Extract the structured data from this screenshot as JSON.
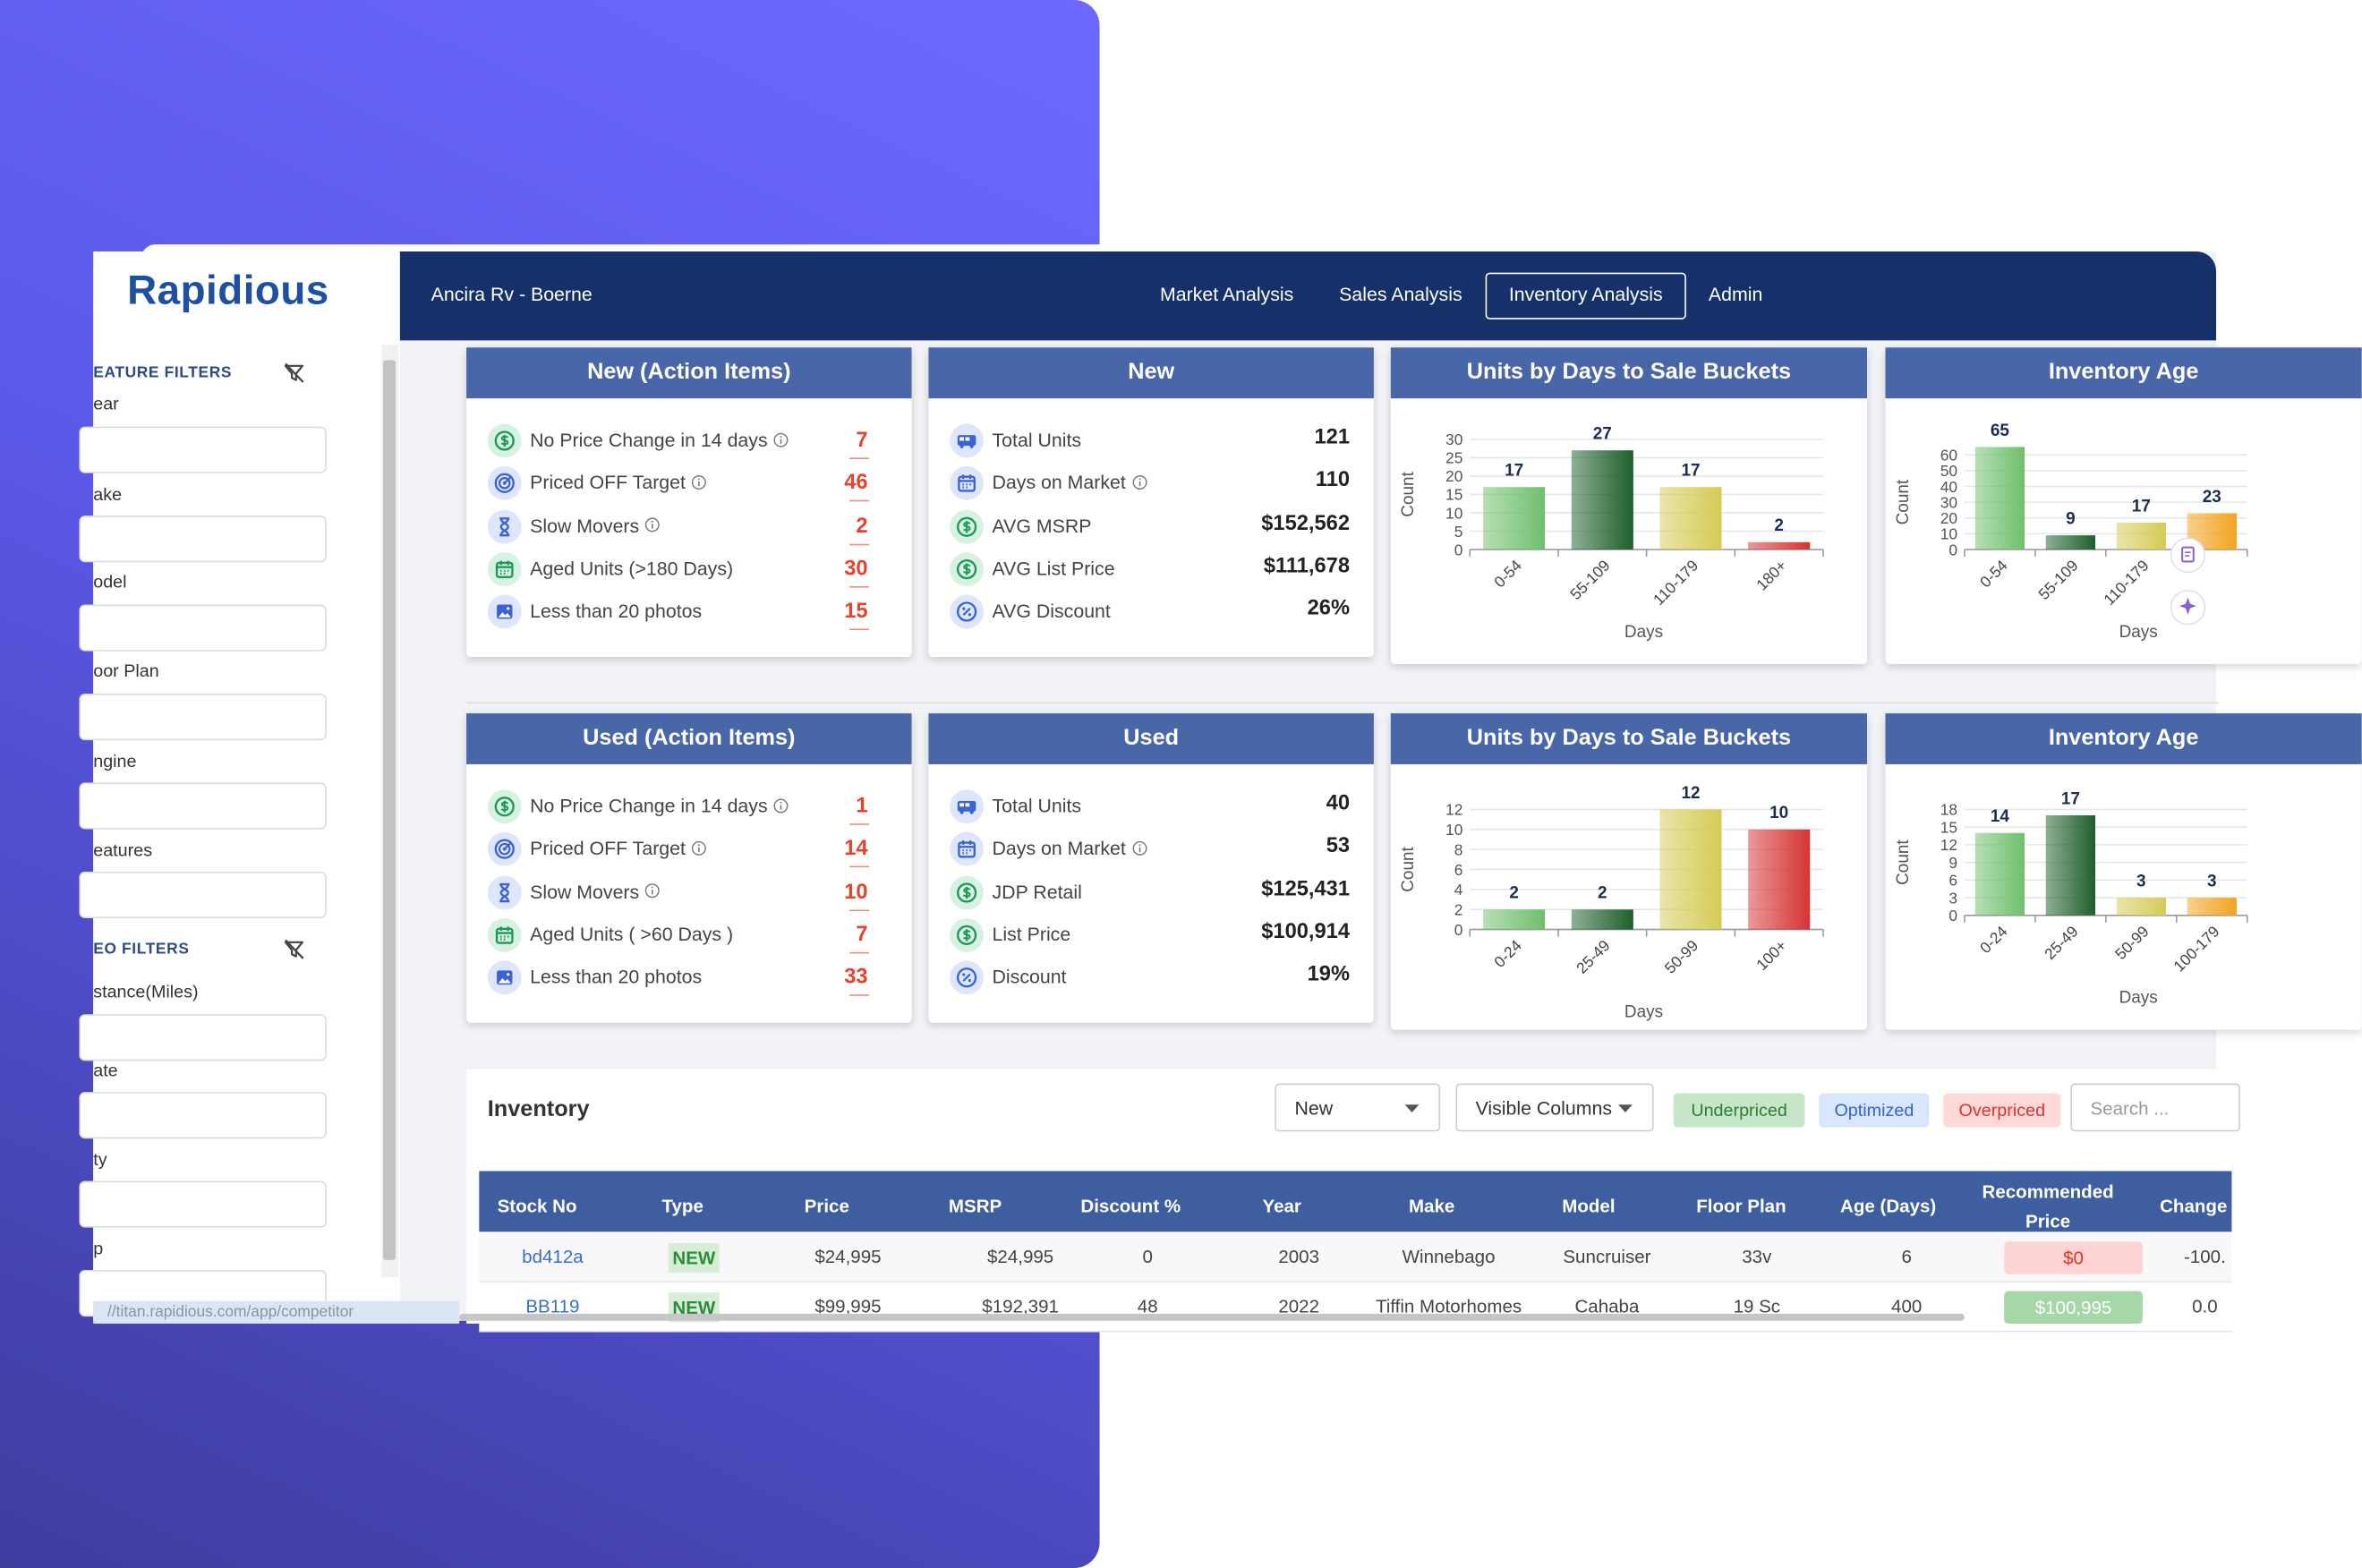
{
  "sidebar": {
    "logo": "Rapidious",
    "feature_filters": {
      "title": "EATURE FILTERS",
      "fields": [
        "ear",
        "ake",
        "odel",
        "oor Plan",
        "ngine",
        "eatures"
      ]
    },
    "geo_filters": {
      "title": "EO FILTERS",
      "fields": [
        "stance(Miles)",
        "ate",
        "ty",
        "p"
      ]
    },
    "status_url": "//titan.rapidious.com/app/competitor"
  },
  "header": {
    "dealer": "Ancira Rv - Boerne",
    "nav": [
      "Market Analysis",
      "Sales Analysis",
      "Inventory Analysis",
      "Admin"
    ]
  },
  "sections": [
    {
      "action_card": {
        "title": "New (Action Items)",
        "items": [
          {
            "label": "No Price Change in 14 days",
            "info": true,
            "value": 7
          },
          {
            "label": "Priced OFF Target",
            "info": true,
            "value": 46
          },
          {
            "label": "Slow Movers",
            "info": true,
            "value": 2
          },
          {
            "label": "Aged Units (>180 Days)",
            "info": false,
            "value": 30
          },
          {
            "label": "Less than 20 photos",
            "info": false,
            "value": 15
          }
        ]
      },
      "summary_card": {
        "title": "New",
        "items": [
          {
            "label": "Total Units",
            "info": false,
            "value": 121
          },
          {
            "label": "Days on Market",
            "info": true,
            "value": 110
          },
          {
            "label": "AVG MSRP",
            "info": false,
            "value": "$152,562"
          },
          {
            "label": "AVG List Price",
            "info": false,
            "value": "$111,678"
          },
          {
            "label": "AVG Discount",
            "info": false,
            "value": "26%"
          }
        ]
      },
      "charts": [
        {
          "type": "bar",
          "title": "Units by Days to Sale Buckets",
          "y_label": "Count",
          "x_label": "Days",
          "categories": [
            "0-54",
            "55-109",
            "110-179",
            "180+"
          ],
          "values": [
            17,
            27,
            17,
            2
          ],
          "colors": [
            "#6fbf6c",
            "#1f5f2b",
            "#d4cb55",
            "#d63333"
          ],
          "ylim": [
            0,
            30
          ],
          "yticks": [
            0,
            5,
            10,
            15,
            20,
            25,
            30
          ],
          "grid": true
        },
        {
          "type": "bar",
          "title": "Inventory Age",
          "y_label": "Count",
          "x_label": "Days",
          "categories": [
            "0-54",
            "55-109",
            "110-179",
            null
          ],
          "values": [
            65,
            9,
            17,
            23
          ],
          "colors": [
            "#6fbf6c",
            "#1f5f2b",
            "#d4cb55",
            "#f2a31f"
          ],
          "ylim": [
            0,
            60
          ],
          "yticks": [
            0,
            10,
            20,
            30,
            40,
            50,
            60
          ],
          "grid": true
        }
      ]
    },
    {
      "action_card": {
        "title": "Used (Action Items)",
        "items": [
          {
            "label": "No Price Change in 14 days",
            "info": true,
            "value": 1
          },
          {
            "label": "Priced OFF Target",
            "info": true,
            "value": 14
          },
          {
            "label": "Slow Movers",
            "info": true,
            "value": 10
          },
          {
            "label": "Aged Units ( >60 Days )",
            "info": false,
            "value": 7
          },
          {
            "label": "Less than 20 photos",
            "info": false,
            "value": 33
          }
        ]
      },
      "summary_card": {
        "title": "Used",
        "items": [
          {
            "label": "Total Units",
            "info": false,
            "value": 40
          },
          {
            "label": "Days on Market",
            "info": true,
            "value": 53
          },
          {
            "label": "JDP Retail",
            "info": false,
            "value": "$125,431"
          },
          {
            "label": "List Price",
            "info": false,
            "value": "$100,914"
          },
          {
            "label": "Discount",
            "info": false,
            "value": "19%"
          }
        ]
      },
      "charts": [
        {
          "type": "bar",
          "title": "Units by Days to Sale Buckets",
          "y_label": "Count",
          "x_label": "Days",
          "categories": [
            "0-24",
            "25-49",
            "50-99",
            "100+"
          ],
          "values": [
            2,
            2,
            12,
            10
          ],
          "colors": [
            "#6fbf6c",
            "#1f5f2b",
            "#d4cb55",
            "#d63333"
          ],
          "ylim": [
            0,
            12
          ],
          "yticks": [
            0,
            2,
            4,
            6,
            8,
            10,
            12
          ],
          "grid": true
        },
        {
          "type": "bar",
          "title": "Inventory Age",
          "y_label": "Count",
          "x_label": "Days",
          "categories": [
            "0-24",
            "25-49",
            "50-99",
            "100-179"
          ],
          "values": [
            14,
            17,
            3,
            3
          ],
          "colors": [
            "#6fbf6c",
            "#1f5f2b",
            "#d4cb55",
            "#f2a31f"
          ],
          "ylim": [
            0,
            18
          ],
          "yticks": [
            0,
            3,
            6,
            9,
            12,
            15,
            18
          ],
          "grid": true
        }
      ]
    }
  ],
  "inventory": {
    "title": "Inventory",
    "type_filter": "New",
    "columns_button": "Visible Columns",
    "legend": [
      "Underpriced",
      "Optimized",
      "Overpriced"
    ],
    "search_placeholder": "Search ...",
    "columns": [
      "Stock No",
      "Type",
      "Price",
      "MSRP",
      "Discount %",
      "Year",
      "Make",
      "Model",
      "Floor Plan",
      "Age (Days)",
      "Recommended Price",
      "Change"
    ],
    "rows": [
      [
        "bd412a",
        "NEW",
        "$24,995",
        "$24,995",
        "0",
        "2003",
        "Winnebago",
        "Suncruiser",
        "33v",
        "6",
        "$0",
        "-100."
      ],
      [
        "BB119",
        "NEW",
        "$99,995",
        "$192,391",
        "48",
        "2022",
        "Tiffin Motorhomes",
        "Cahaba",
        "19 Sc",
        "400",
        "$100,995",
        "0.0"
      ]
    ]
  }
}
